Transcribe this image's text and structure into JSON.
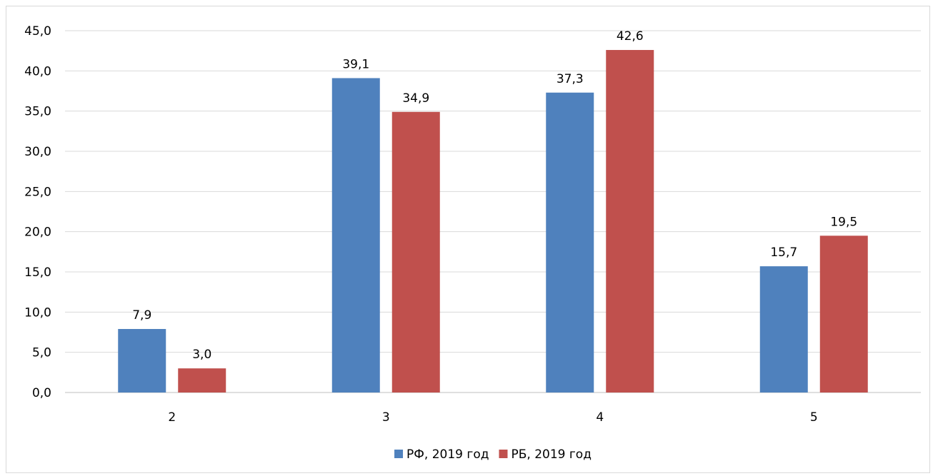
{
  "chart_data": {
    "type": "bar",
    "categories": [
      "2",
      "3",
      "4",
      "5"
    ],
    "series": [
      {
        "name": "РФ, 2019 год",
        "color": "#4f81bd",
        "values": [
          7.9,
          39.1,
          37.3,
          15.7
        ]
      },
      {
        "name": "РБ, 2019 год",
        "color": "#c0504d",
        "values": [
          3.0,
          34.9,
          42.6,
          19.5
        ]
      }
    ],
    "data_labels": [
      [
        "7,9",
        "39,1",
        "37,3",
        "15,7"
      ],
      [
        "3,0",
        "34,9",
        "42,6",
        "19,5"
      ]
    ],
    "y_ticks": [
      "0,0",
      "5,0",
      "10,0",
      "15,0",
      "20,0",
      "25,0",
      "30,0",
      "35,0",
      "40,0",
      "45,0"
    ],
    "ylim": [
      0,
      45
    ],
    "grid": true,
    "legend_position": "bottom",
    "title": "",
    "xlabel": "",
    "ylabel": ""
  }
}
